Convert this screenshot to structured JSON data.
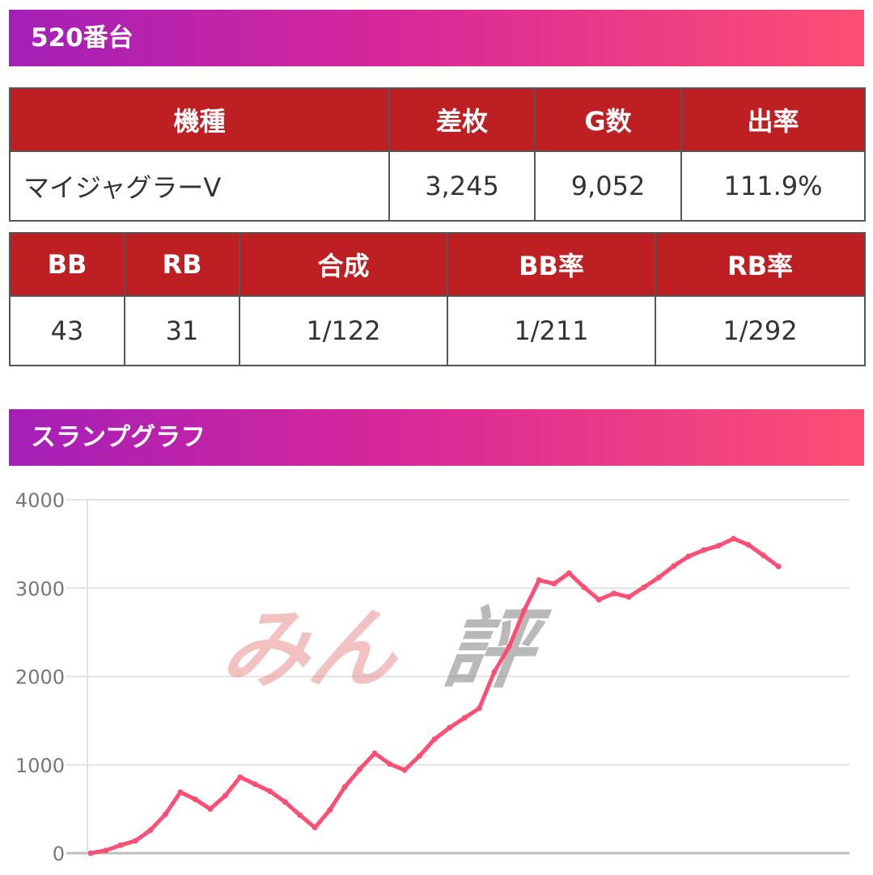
{
  "machine_header": "520番台",
  "main_table": {
    "headers": [
      "機種",
      "差枚",
      "G数",
      "出率"
    ],
    "row": [
      "マイジャグラーV",
      "3,245",
      "9,052",
      "111.9%"
    ]
  },
  "bonus_table": {
    "headers": [
      "BB",
      "RB",
      "合成",
      "BB率",
      "RB率"
    ],
    "row": [
      "43",
      "31",
      "1/122",
      "1/211",
      "1/292"
    ]
  },
  "graph_header": "スランプグラフ",
  "watermark": "みん評",
  "colors": {
    "header_gradient": [
      "#a41fb8",
      "#fd4f74"
    ],
    "table_header": "#bd1f23",
    "line": "#fd4f74"
  },
  "chart_data": {
    "type": "line",
    "title": "",
    "xlabel": "",
    "ylabel": "",
    "ylim": [
      0,
      4000
    ],
    "yticks": [
      "0",
      "1000",
      "2000",
      "3000",
      "4000"
    ],
    "grid": true,
    "series": [
      {
        "values": [
          0,
          30,
          90,
          140,
          260,
          440,
          690,
          610,
          500,
          650,
          860,
          780,
          700,
          580,
          430,
          290,
          490,
          750,
          950,
          1130,
          1010,
          940,
          1100,
          1290,
          1420,
          1530,
          1640,
          2050,
          2340,
          2750,
          3090,
          3050,
          3170,
          3010,
          2870,
          2940,
          2900,
          3010,
          3120,
          3250,
          3360,
          3430,
          3480,
          3560,
          3490,
          3370,
          3245
        ]
      }
    ]
  }
}
